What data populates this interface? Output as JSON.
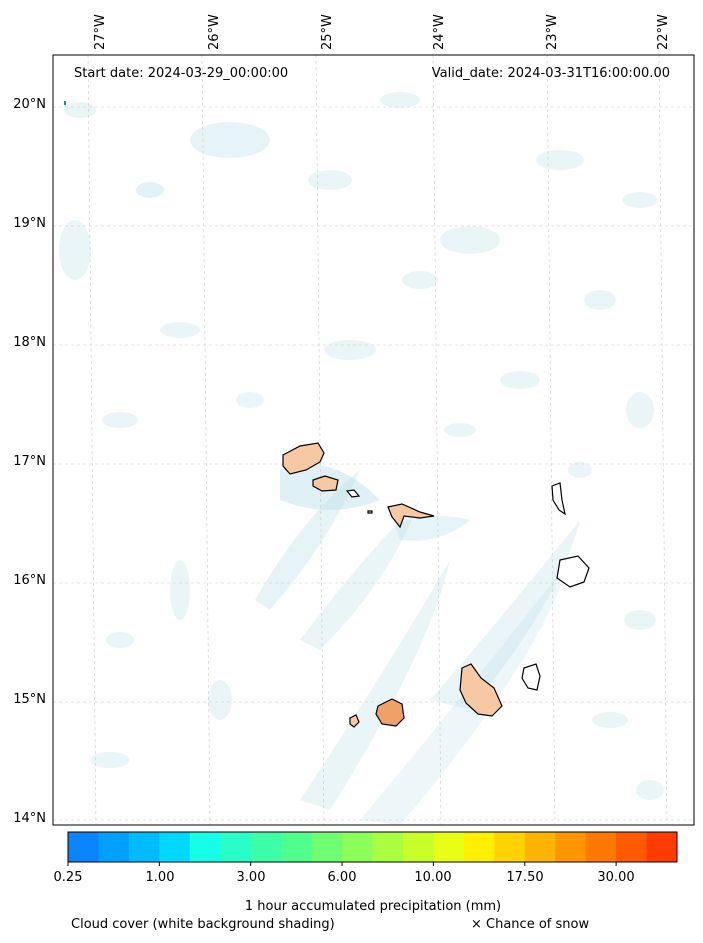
{
  "map": {
    "start_label": "Start date: 2024-03-29_00:00:00",
    "valid_label": "Valid_date: 2024-03-31T16:00:00.00",
    "lon_labels": [
      "27°W",
      "26°W",
      "25°W",
      "24°W",
      "23°W",
      "22°W"
    ],
    "lat_labels": [
      "20°N",
      "19°N",
      "18°N",
      "17°N",
      "16°N",
      "15°N",
      "14°N"
    ]
  },
  "colorbar": {
    "colors": [
      "#0a84ff",
      "#00a0ff",
      "#00bcff",
      "#00d9ff",
      "#14ffe6",
      "#28ffc8",
      "#3cffa8",
      "#50ff8c",
      "#70ff70",
      "#8cff5a",
      "#aaff40",
      "#c8ff28",
      "#e6ff14",
      "#fff000",
      "#ffd200",
      "#ffb400",
      "#ff9600",
      "#ff7800",
      "#ff5a00",
      "#ff3c00"
    ],
    "tick_labels": [
      "0.25",
      "1.00",
      "3.00",
      "6.00",
      "10.00",
      "17.50",
      "30.00"
    ],
    "title": "1 hour accumulated precipitation (mm)"
  },
  "footer": {
    "cloud_text": "Cloud cover (white background shading)",
    "snow_text": "× Chance of snow"
  }
}
